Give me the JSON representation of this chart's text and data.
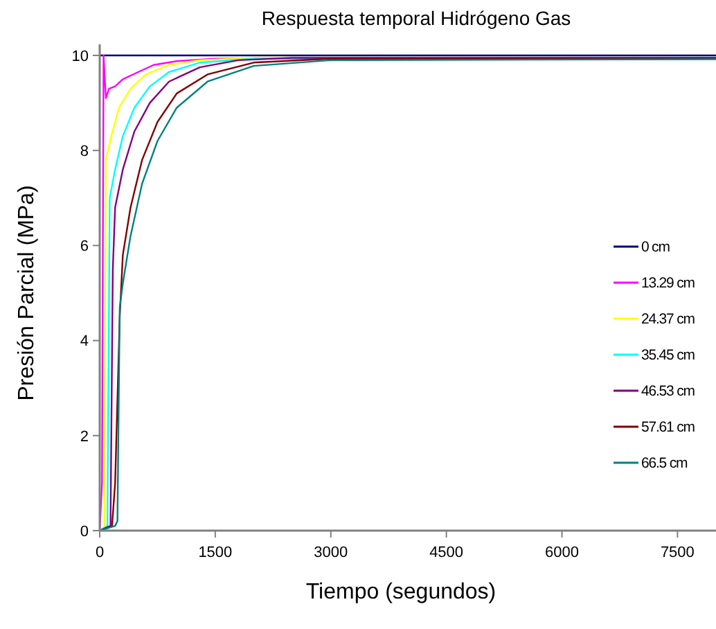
{
  "chart_data": {
    "type": "line",
    "title": "Respuesta temporal Hidrógeno Gas",
    "xlabel": "Tiempo (segundos)",
    "ylabel": "Presión Parcial (MPa)",
    "xlim": [
      0,
      8000
    ],
    "xticks": [
      0,
      1500,
      3000,
      4500,
      6000,
      7500
    ],
    "ylim": [
      0,
      10
    ],
    "yticks": [
      0,
      2,
      4,
      6,
      8,
      10
    ],
    "grid": false,
    "legend": "right",
    "marker": "none",
    "line_style": "solid",
    "series": [
      {
        "name": "0 cm",
        "color": "#000080",
        "x": [
          0,
          8000
        ],
        "values": [
          10,
          10
        ]
      },
      {
        "name": "13.29 cm",
        "color": "#ff00ff",
        "x": [
          0,
          30,
          50,
          80,
          120,
          200,
          300,
          500,
          700,
          1000,
          1500,
          8000
        ],
        "values": [
          0,
          1,
          10,
          9.1,
          9.3,
          9.35,
          9.5,
          9.65,
          9.8,
          9.88,
          9.93,
          9.95
        ]
      },
      {
        "name": "24.37 cm",
        "color": "#ffff00",
        "x": [
          0,
          60,
          80,
          150,
          250,
          400,
          600,
          900,
          1300,
          2000,
          8000
        ],
        "values": [
          0,
          0,
          7.8,
          8.3,
          8.9,
          9.3,
          9.6,
          9.8,
          9.9,
          9.95,
          9.95
        ]
      },
      {
        "name": "35.45 cm",
        "color": "#00ffff",
        "x": [
          0,
          100,
          130,
          200,
          300,
          450,
          650,
          900,
          1300,
          2000,
          8000
        ],
        "values": [
          0,
          0.1,
          7.0,
          7.6,
          8.3,
          8.9,
          9.35,
          9.65,
          9.85,
          9.93,
          9.95
        ]
      },
      {
        "name": "46.53 cm",
        "color": "#800080",
        "x": [
          0,
          140,
          170,
          200,
          300,
          450,
          650,
          900,
          1300,
          1800,
          2500,
          8000
        ],
        "values": [
          0,
          0.1,
          5.5,
          6.8,
          7.6,
          8.4,
          9.0,
          9.45,
          9.75,
          9.9,
          9.95,
          9.95
        ]
      },
      {
        "name": "57.61 cm",
        "color": "#800000",
        "x": [
          0,
          160,
          200,
          260,
          300,
          400,
          550,
          750,
          1000,
          1400,
          2000,
          3000,
          8000
        ],
        "values": [
          0,
          0.1,
          1.0,
          4.5,
          5.8,
          6.8,
          7.8,
          8.6,
          9.2,
          9.6,
          9.85,
          9.93,
          9.93
        ]
      },
      {
        "name": "66.5 cm",
        "color": "#008080",
        "x": [
          0,
          200,
          230,
          260,
          300,
          400,
          550,
          750,
          1000,
          1400,
          2000,
          3000,
          8000
        ],
        "values": [
          0,
          0.1,
          0.2,
          4.7,
          5.2,
          6.2,
          7.3,
          8.2,
          8.9,
          9.45,
          9.78,
          9.9,
          9.92
        ]
      }
    ]
  }
}
